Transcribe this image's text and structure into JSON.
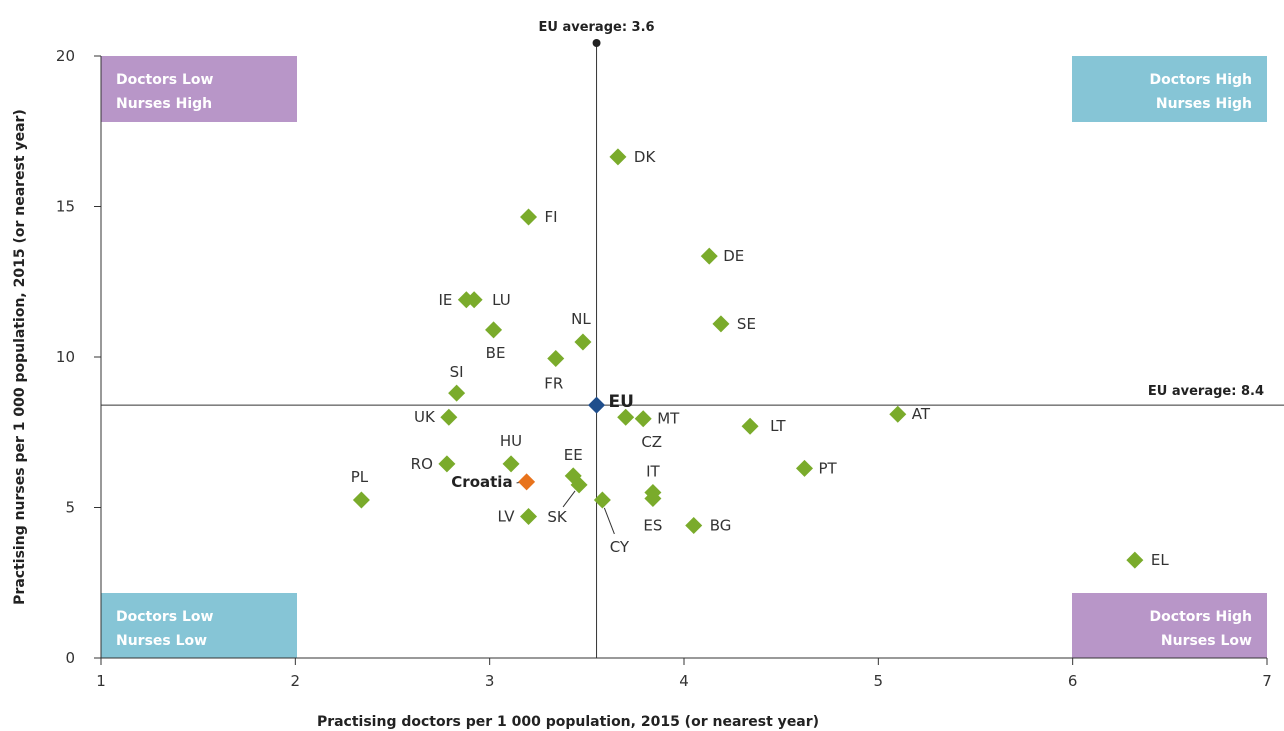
{
  "chart_data": {
    "type": "scatter",
    "title": "",
    "xlabel": "Practising doctors per 1 000 population, 2015 (or nearest year)",
    "ylabel": "Practising nurses per 1 000 population, 2015 (or nearest year)",
    "xlim": [
      1,
      7
    ],
    "ylim": [
      0,
      20
    ],
    "xticks": [
      "1",
      "2",
      "3",
      "4",
      "5",
      "6",
      "7"
    ],
    "yticks": [
      "0",
      "5",
      "10",
      "15",
      "20"
    ],
    "grid": false,
    "colors": {
      "country": "#7aab2b",
      "eu": "#1f4e8c",
      "highlight": "#e8731c",
      "purple": "#b896c8",
      "teal": "#86c5d6"
    },
    "reference_lines": {
      "x": {
        "value": 3.6,
        "label": "EU average: 3.6"
      },
      "y": {
        "value": 8.4,
        "label": "EU average: 8.4"
      }
    },
    "quadrants": [
      {
        "id": "top-left",
        "line1": "Doctors Low",
        "line2": "Nurses High",
        "color": "purple"
      },
      {
        "id": "top-right",
        "line1": "Doctors High",
        "line2": "Nurses High",
        "color": "teal"
      },
      {
        "id": "bottom-left",
        "line1": "Doctors Low",
        "line2": "Nurses Low",
        "color": "teal"
      },
      {
        "id": "bottom-right",
        "line1": "Doctors High",
        "line2": "Nurses Low",
        "color": "purple"
      }
    ],
    "points": [
      {
        "label": "DK",
        "x": 3.66,
        "y": 16.65
      },
      {
        "label": "FI",
        "x": 3.2,
        "y": 14.65
      },
      {
        "label": "DE",
        "x": 4.13,
        "y": 13.35
      },
      {
        "label": "IE",
        "x": 2.88,
        "y": 11.9
      },
      {
        "label": "LU",
        "x": 2.92,
        "y": 11.9
      },
      {
        "label": "SE",
        "x": 4.19,
        "y": 11.1
      },
      {
        "label": "BE",
        "x": 3.02,
        "y": 10.9
      },
      {
        "label": "NL",
        "x": 3.48,
        "y": 10.5
      },
      {
        "label": "FR",
        "x": 3.34,
        "y": 9.95
      },
      {
        "label": "SI",
        "x": 2.83,
        "y": 8.8
      },
      {
        "label": "EU",
        "x": 3.55,
        "y": 8.4,
        "kind": "eu"
      },
      {
        "label": "UK",
        "x": 2.79,
        "y": 8.0
      },
      {
        "label": "CZ",
        "x": 3.7,
        "y": 8.0
      },
      {
        "label": "MT",
        "x": 3.79,
        "y": 7.95
      },
      {
        "label": "AT",
        "x": 5.1,
        "y": 8.1
      },
      {
        "label": "LT",
        "x": 4.34,
        "y": 7.7
      },
      {
        "label": "HU",
        "x": 3.11,
        "y": 6.45
      },
      {
        "label": "RO",
        "x": 2.78,
        "y": 6.45
      },
      {
        "label": "PT",
        "x": 4.62,
        "y": 6.3
      },
      {
        "label": "EE",
        "x": 3.43,
        "y": 6.05
      },
      {
        "label": "Croatia",
        "x": 3.19,
        "y": 5.85,
        "kind": "highlight"
      },
      {
        "label": "SK",
        "x": 3.46,
        "y": 5.75
      },
      {
        "label": "IT",
        "x": 3.84,
        "y": 5.5
      },
      {
        "label": "ES",
        "x": 3.84,
        "y": 5.3
      },
      {
        "label": "CY",
        "x": 3.58,
        "y": 5.25
      },
      {
        "label": "PL",
        "x": 2.34,
        "y": 5.25
      },
      {
        "label": "LV",
        "x": 3.2,
        "y": 4.7
      },
      {
        "label": "BG",
        "x": 4.05,
        "y": 4.4
      },
      {
        "label": "EL",
        "x": 6.32,
        "y": 3.25
      }
    ]
  }
}
